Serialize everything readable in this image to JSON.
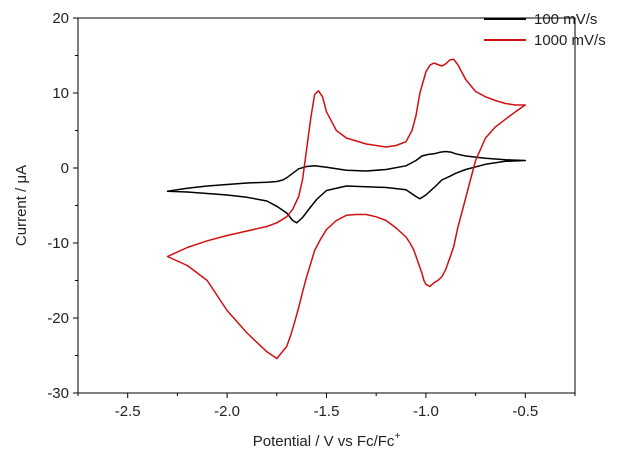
{
  "chart_data": {
    "type": "line",
    "title": "",
    "xlabel_main": "Potential / V vs Fc/Fc",
    "xlabel_sup": "+",
    "ylabel": "Current / μA",
    "xlim": [
      -2.75,
      -0.25
    ],
    "ylim": [
      -30,
      20
    ],
    "x_ticks": [
      -2.5,
      -2.0,
      -1.5,
      -1.0,
      -0.5
    ],
    "x_tick_labels": [
      "-2.5",
      "-2.0",
      "-1.5",
      "-1.0",
      "-0.5"
    ],
    "y_ticks": [
      -30,
      -20,
      -10,
      0,
      10,
      20
    ],
    "y_tick_labels": [
      "-30",
      "-20",
      "-10",
      "0",
      "10",
      "20"
    ],
    "grid": false,
    "legend_position": "top-right",
    "series": [
      {
        "name": "100 mV/s",
        "color": "#000000",
        "x": [
          -0.5,
          -0.6,
          -0.7,
          -0.8,
          -0.85,
          -0.88,
          -0.92,
          -0.95,
          -0.98,
          -1.0,
          -1.03,
          -1.05,
          -1.1,
          -1.2,
          -1.3,
          -1.4,
          -1.5,
          -1.55,
          -1.58,
          -1.62,
          -1.65,
          -1.67,
          -1.7,
          -1.75,
          -1.8,
          -1.9,
          -2.0,
          -2.1,
          -2.2,
          -2.3,
          -2.2,
          -2.1,
          -2.0,
          -1.9,
          -1.8,
          -1.75,
          -1.72,
          -1.7,
          -1.67,
          -1.64,
          -1.6,
          -1.56,
          -1.53,
          -1.5,
          -1.4,
          -1.3,
          -1.2,
          -1.1,
          -1.05,
          -1.02,
          -0.99,
          -0.96,
          -0.93,
          -0.9,
          -0.87,
          -0.85,
          -0.8,
          -0.7,
          -0.6,
          -0.5
        ],
        "y": [
          1.0,
          0.9,
          0.5,
          -0.2,
          -0.7,
          -1.1,
          -1.6,
          -2.4,
          -3.1,
          -3.6,
          -4.1,
          -3.8,
          -2.9,
          -2.6,
          -2.5,
          -2.4,
          -3.0,
          -4.2,
          -5.2,
          -6.6,
          -7.3,
          -7.0,
          -6.0,
          -5.1,
          -4.4,
          -3.9,
          -3.6,
          -3.4,
          -3.2,
          -3.1,
          -2.7,
          -2.4,
          -2.2,
          -2.0,
          -1.9,
          -1.8,
          -1.6,
          -1.3,
          -0.7,
          -0.1,
          0.2,
          0.3,
          0.2,
          0.1,
          -0.3,
          -0.4,
          -0.2,
          0.3,
          1.0,
          1.6,
          1.8,
          1.9,
          2.1,
          2.2,
          2.1,
          1.9,
          1.6,
          1.3,
          1.1,
          1.0
        ]
      },
      {
        "name": "1000 mV/s",
        "color": "#d01010",
        "x": [
          -0.5,
          -0.55,
          -0.6,
          -0.65,
          -0.7,
          -0.75,
          -0.78,
          -0.8,
          -0.82,
          -0.84,
          -0.86,
          -0.88,
          -0.9,
          -0.92,
          -0.94,
          -0.96,
          -0.98,
          -1.0,
          -1.01,
          -1.02,
          -1.04,
          -1.06,
          -1.08,
          -1.1,
          -1.15,
          -1.2,
          -1.25,
          -1.3,
          -1.35,
          -1.4,
          -1.45,
          -1.5,
          -1.53,
          -1.56,
          -1.58,
          -1.6,
          -1.62,
          -1.64,
          -1.66,
          -1.68,
          -1.7,
          -1.75,
          -1.8,
          -1.9,
          -2.0,
          -2.1,
          -2.2,
          -2.3,
          -2.2,
          -2.1,
          -2.0,
          -1.9,
          -1.8,
          -1.75,
          -1.7,
          -1.67,
          -1.64,
          -1.62,
          -1.6,
          -1.58,
          -1.56,
          -1.54,
          -1.52,
          -1.5,
          -1.45,
          -1.4,
          -1.3,
          -1.2,
          -1.15,
          -1.1,
          -1.07,
          -1.05,
          -1.03,
          -1.0,
          -0.98,
          -0.96,
          -0.94,
          -0.92,
          -0.9,
          -0.88,
          -0.86,
          -0.84,
          -0.82,
          -0.8,
          -0.75,
          -0.7,
          -0.65,
          -0.6,
          -0.55,
          -0.5
        ],
        "y": [
          8.4,
          7.5,
          6.5,
          5.5,
          4.0,
          1.0,
          -2.0,
          -4.0,
          -6.0,
          -8.0,
          -10.5,
          -12.0,
          -13.5,
          -14.5,
          -15.0,
          -15.3,
          -15.8,
          -15.5,
          -15.0,
          -14.0,
          -12.5,
          -11.0,
          -10.0,
          -9.2,
          -8.0,
          -7.0,
          -6.5,
          -6.2,
          -6.2,
          -6.3,
          -7.0,
          -8.2,
          -9.5,
          -11.0,
          -12.8,
          -14.5,
          -16.5,
          -18.6,
          -20.5,
          -22.3,
          -23.8,
          -25.4,
          -24.5,
          -22.0,
          -19.0,
          -15.0,
          -13.0,
          -11.8,
          -10.6,
          -9.7,
          -9.0,
          -8.4,
          -7.8,
          -7.3,
          -6.5,
          -5.5,
          -3.8,
          -1.5,
          2.5,
          6.5,
          9.8,
          10.3,
          9.5,
          7.5,
          5.0,
          4.0,
          3.2,
          2.8,
          3.0,
          3.5,
          5.0,
          7.0,
          10.0,
          12.8,
          13.7,
          14.0,
          13.8,
          13.6,
          13.9,
          14.4,
          14.5,
          13.8,
          12.8,
          11.8,
          10.2,
          9.5,
          9.0,
          8.6,
          8.4,
          8.4
        ]
      }
    ]
  }
}
